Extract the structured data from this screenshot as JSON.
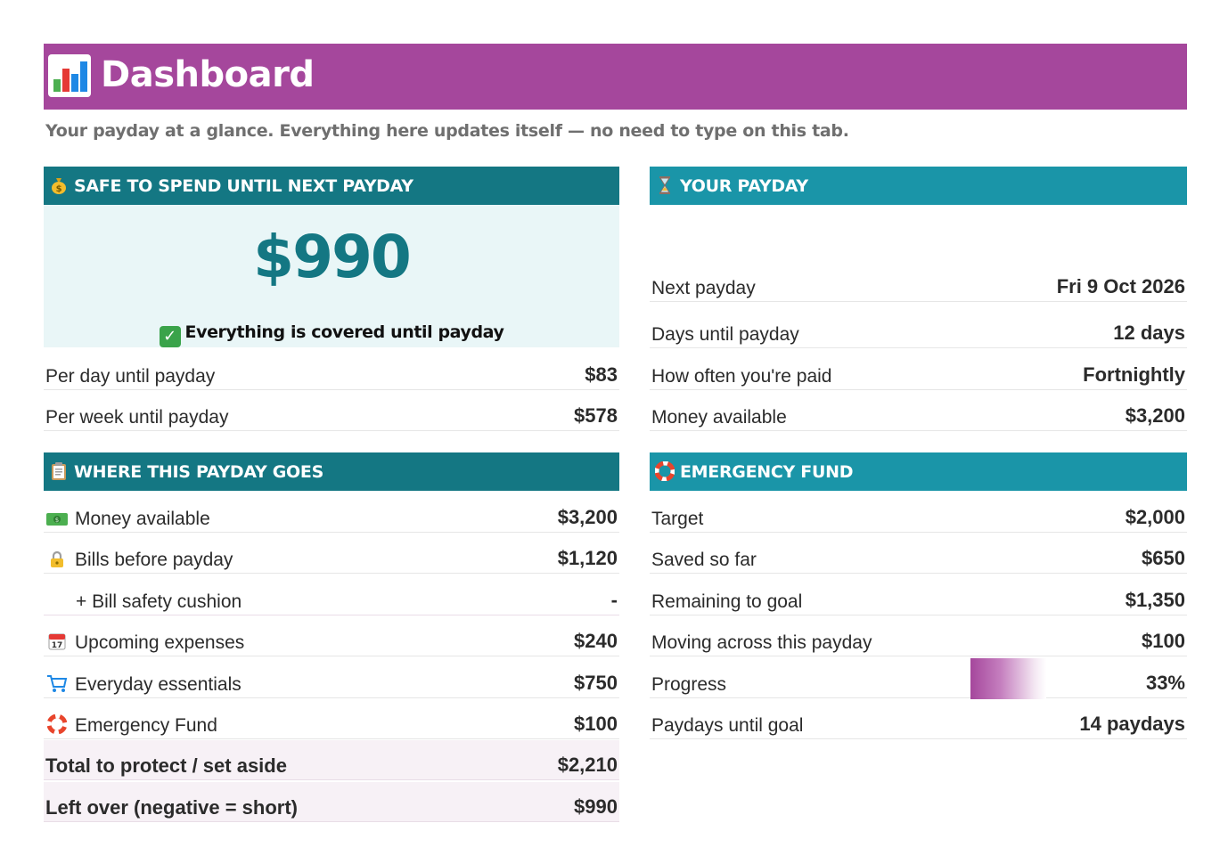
{
  "header": {
    "title": "Dashboard",
    "icon": "bar-chart-icon",
    "color": "#a5479c"
  },
  "subtitle": "Your payday at a glance. Everything here updates itself — no need to type on this tab.",
  "safe_to_spend": {
    "heading": "SAFE TO SPEND UNTIL NEXT PAYDAY",
    "icon": "money-bag-icon",
    "amount": "$990",
    "status": "Everything is covered until payday",
    "status_icon": "check-mark-icon",
    "rows": [
      {
        "label": "Per day until payday",
        "value": "$83"
      },
      {
        "label": "Per week until payday",
        "value": "$578"
      }
    ]
  },
  "your_payday": {
    "heading": "YOUR PAYDAY",
    "icon": "hourglass-icon",
    "rows": [
      {
        "label": "Next payday",
        "value": "Fri 9 Oct 2026"
      },
      {
        "label": "Days until payday",
        "value": "12 days"
      },
      {
        "label": "How often you're paid",
        "value": "Fortnightly"
      },
      {
        "label": "Money available",
        "value": "$3,200"
      }
    ]
  },
  "where_goes": {
    "heading": "WHERE THIS PAYDAY GOES",
    "icon": "clipboard-icon",
    "rows": [
      {
        "label": "Money available",
        "value": "$3,200",
        "icon": "banknote-icon"
      },
      {
        "label": "Bills before payday",
        "value": "$1,120",
        "icon": "lock-icon"
      },
      {
        "label": "+ Bill safety cushion",
        "value": "-"
      },
      {
        "label": "Upcoming expenses",
        "value": "$240",
        "icon": "calendar-icon"
      },
      {
        "label": "Everyday essentials",
        "value": "$750",
        "icon": "shopping-cart-icon"
      },
      {
        "label": "Emergency Fund",
        "value": "$100",
        "icon": "lifebuoy-icon"
      }
    ],
    "total": {
      "label": "Total to protect / set aside",
      "value": "$2,210"
    },
    "leftover": {
      "label": "Left over (negative = short)",
      "value": "$990"
    }
  },
  "emergency_fund": {
    "heading": "EMERGENCY FUND",
    "icon": "lifebuoy-icon",
    "rows": [
      {
        "label": "Target",
        "value": "$2,000"
      },
      {
        "label": "Saved so far",
        "value": "$650"
      },
      {
        "label": "Remaining to goal",
        "value": "$1,350"
      },
      {
        "label": "Moving across this payday",
        "value": "$100"
      },
      {
        "label": "Progress",
        "value": "33%"
      },
      {
        "label": "Paydays until goal",
        "value": "14 paydays"
      }
    ],
    "progress_fraction": 0.33
  },
  "colors": {
    "dark_header": "#147783",
    "teal_header": "#1a95a8",
    "safe_bg": "#e9f6f7",
    "accent": "#a5479c"
  }
}
